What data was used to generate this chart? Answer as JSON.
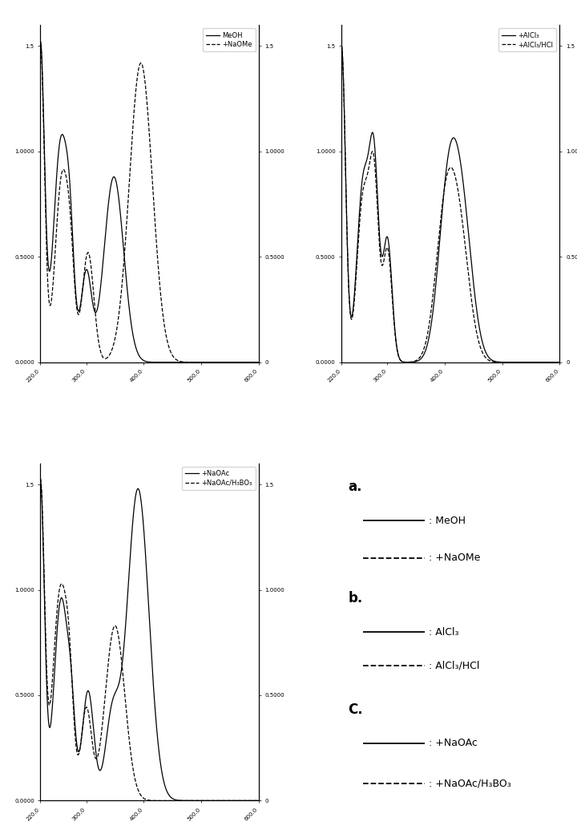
{
  "xmin": 220,
  "xmax": 600,
  "ymin": 0.0,
  "ymax": 1.6,
  "xticks": [
    220,
    300,
    400,
    500,
    600
  ],
  "xtick_labels": [
    "220.0",
    "300.0",
    "400.0",
    "500.0",
    "600.0"
  ],
  "yticks": [
    0.0,
    0.5,
    1.0,
    1.5
  ],
  "ytick_labels_left": [
    "0.0000",
    "0.5000",
    "1.0000",
    "1.5"
  ],
  "ytick_labels_right": [
    "0",
    "0.5000",
    "1.0000",
    "1.5"
  ],
  "panel_a_legend": [
    "MeOH",
    "+NaOMe"
  ],
  "panel_b_legend": [
    "+AlCl₃",
    "+AlCl₃/HCl"
  ],
  "panel_c_legend": [
    "+NaOAc",
    "+NaOAc/H₃BO₃"
  ],
  "legend_panel_items": [
    {
      "prefix": "a.",
      "line": null,
      "label": null
    },
    {
      "prefix": null,
      "line": "solid",
      "label": ": MeOH"
    },
    {
      "prefix": null,
      "line": "dashed",
      "label": ": +NaOMe"
    },
    {
      "prefix": "b.",
      "line": null,
      "label": null
    },
    {
      "prefix": null,
      "line": "solid",
      "label": ": AlCl₃"
    },
    {
      "prefix": null,
      "line": "dashed",
      "label": ": AlCl₃/HCl"
    },
    {
      "prefix": "C.",
      "line": null,
      "label": null
    },
    {
      "prefix": null,
      "line": "solid",
      "label": ": +NaOAc"
    },
    {
      "prefix": null,
      "line": "dashed",
      "label": ": +NaOAc/H₃BO₃"
    }
  ],
  "legend_y_positions": [
    0.93,
    0.83,
    0.72,
    0.6,
    0.5,
    0.4,
    0.27,
    0.17,
    0.05
  ]
}
